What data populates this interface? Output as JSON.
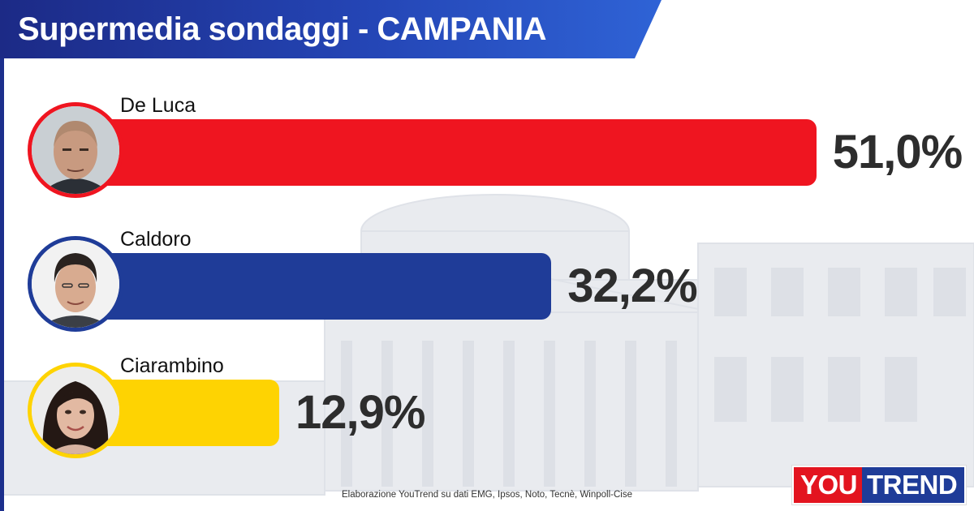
{
  "header": {
    "title": "Supermedia sondaggi - CAMPANIA"
  },
  "colors": {
    "header_dark": "#1c2a86",
    "header_light": "#2f63d6"
  },
  "chart_data": {
    "type": "bar",
    "orientation": "horizontal",
    "title": "Supermedia sondaggi - CAMPANIA",
    "unit": "%",
    "xlim": [
      0,
      57
    ],
    "series": [
      {
        "name": "De Luca",
        "value": 51.0,
        "label": "51,0%",
        "color": "#ef1520",
        "avatar": "man-bald-icon"
      },
      {
        "name": "Caldoro",
        "value": 32.2,
        "label": "32,2%",
        "color": "#1f3c98",
        "avatar": "man-dark-hair-icon"
      },
      {
        "name": "Ciarambino",
        "value": 12.9,
        "label": "12,9%",
        "color": "#fed302",
        "avatar": "woman-dark-hair-icon"
      }
    ]
  },
  "footer": {
    "source": "Elaborazione YouTrend su dati EMG, Ipsos, Noto, Tecnè, Winpoll-Cise"
  },
  "logo": {
    "part1": "YOU",
    "part2": "TREND"
  }
}
